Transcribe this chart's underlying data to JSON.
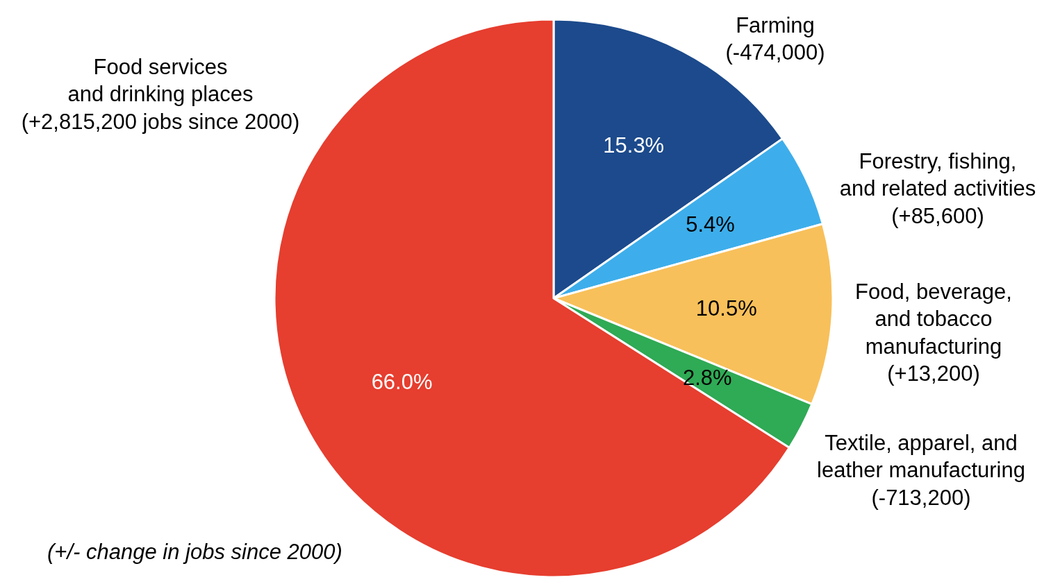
{
  "chart_data": {
    "type": "pie",
    "categories": [
      "Farming\n(-474,000)",
      "Forestry, fishing,\nand related activities\n(+85,600)",
      "Food, beverage,\nand tobacco\nmanufacturing\n(+13,200)",
      "Textile, apparel, and\nleather manufacturing\n(-713,200)",
      "Food services\nand drinking places\n(+2,815,200 jobs since 2000)"
    ],
    "values": [
      15.3,
      5.4,
      10.5,
      2.8,
      66.0
    ],
    "value_labels": [
      "15.3%",
      "5.4%",
      "10.5%",
      "2.8%",
      "66.0%"
    ],
    "colors": [
      "#1c4a8c",
      "#3daeeb",
      "#f8c05a",
      "#2faa55",
      "#e63e2f"
    ],
    "annotations": [
      "(+/- change in jobs since 2000)"
    ]
  }
}
